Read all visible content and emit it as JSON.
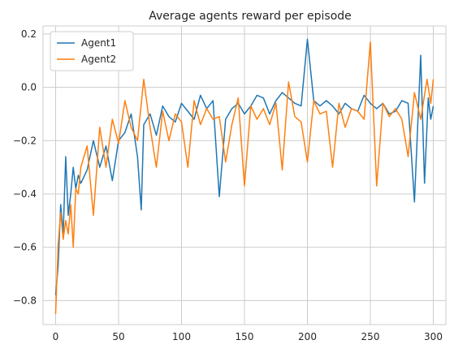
{
  "chart_data": {
    "type": "line",
    "title": "Average agents reward per episode",
    "xlabel": "",
    "ylabel": "",
    "xlim": [
      -10,
      310
    ],
    "ylim": [
      -0.89,
      0.23
    ],
    "xticks": [
      0,
      50,
      100,
      150,
      200,
      250,
      300
    ],
    "xtick_labels": [
      "0",
      "50",
      "100",
      "150",
      "200",
      "250",
      "300"
    ],
    "yticks": [
      -0.8,
      -0.6,
      -0.4,
      -0.2,
      0.0,
      0.2
    ],
    "ytick_labels": [
      "−0.8",
      "−0.6",
      "−0.4",
      "−0.2",
      "0.0",
      "0.2"
    ],
    "grid": true,
    "legend_position": "top-left",
    "series": [
      {
        "name": "Agent1",
        "color": "#1f77b4",
        "x": [
          0,
          2,
          4,
          6,
          8,
          10,
          12,
          14,
          16,
          18,
          20,
          25,
          30,
          35,
          40,
          45,
          50,
          55,
          60,
          65,
          68,
          70,
          75,
          80,
          85,
          90,
          95,
          100,
          105,
          110,
          115,
          120,
          125,
          130,
          135,
          140,
          145,
          150,
          155,
          160,
          165,
          170,
          175,
          180,
          185,
          190,
          195,
          200,
          205,
          210,
          215,
          220,
          225,
          230,
          235,
          240,
          245,
          250,
          255,
          260,
          265,
          270,
          275,
          280,
          285,
          290,
          293,
          296,
          298,
          300
        ],
        "y": [
          -0.78,
          -0.67,
          -0.44,
          -0.55,
          -0.26,
          -0.48,
          -0.4,
          -0.3,
          -0.38,
          -0.33,
          -0.36,
          -0.31,
          -0.2,
          -0.3,
          -0.22,
          -0.35,
          -0.2,
          -0.17,
          -0.1,
          -0.26,
          -0.46,
          -0.14,
          -0.1,
          -0.18,
          -0.07,
          -0.11,
          -0.13,
          -0.06,
          -0.09,
          -0.12,
          -0.03,
          -0.08,
          -0.05,
          -0.41,
          -0.12,
          -0.08,
          -0.06,
          -0.1,
          -0.07,
          -0.03,
          -0.04,
          -0.1,
          -0.05,
          -0.02,
          -0.04,
          -0.06,
          -0.07,
          0.18,
          -0.05,
          -0.07,
          -0.05,
          -0.07,
          -0.1,
          -0.06,
          -0.08,
          -0.09,
          -0.03,
          -0.06,
          -0.08,
          -0.06,
          -0.1,
          -0.09,
          -0.05,
          -0.06,
          -0.43,
          0.12,
          -0.36,
          -0.04,
          -0.12,
          -0.07
        ]
      },
      {
        "name": "Agent2",
        "color": "#ff7f0e",
        "x": [
          0,
          2,
          4,
          6,
          8,
          10,
          12,
          14,
          16,
          18,
          20,
          25,
          30,
          35,
          40,
          45,
          50,
          55,
          60,
          65,
          70,
          75,
          80,
          85,
          90,
          95,
          100,
          105,
          110,
          115,
          120,
          125,
          130,
          135,
          140,
          145,
          150,
          155,
          160,
          165,
          170,
          175,
          180,
          185,
          190,
          195,
          200,
          205,
          210,
          215,
          220,
          225,
          230,
          235,
          240,
          245,
          250,
          255,
          260,
          265,
          270,
          275,
          280,
          285,
          290,
          295,
          298,
          300
        ],
        "y": [
          -0.85,
          -0.59,
          -0.47,
          -0.57,
          -0.5,
          -0.55,
          -0.44,
          -0.6,
          -0.38,
          -0.4,
          -0.3,
          -0.22,
          -0.48,
          -0.15,
          -0.3,
          -0.12,
          -0.21,
          -0.05,
          -0.15,
          -0.2,
          0.03,
          -0.15,
          -0.3,
          -0.09,
          -0.2,
          -0.1,
          -0.13,
          -0.3,
          -0.05,
          -0.14,
          -0.08,
          -0.12,
          -0.11,
          -0.28,
          -0.14,
          -0.04,
          -0.37,
          -0.07,
          -0.12,
          -0.08,
          -0.14,
          -0.06,
          -0.31,
          0.02,
          -0.11,
          -0.13,
          -0.28,
          -0.05,
          -0.1,
          -0.09,
          -0.3,
          -0.06,
          -0.15,
          -0.08,
          -0.09,
          -0.12,
          0.17,
          -0.37,
          -0.06,
          -0.11,
          -0.08,
          -0.12,
          -0.26,
          -0.02,
          -0.12,
          0.03,
          -0.06,
          0.03
        ]
      }
    ]
  }
}
